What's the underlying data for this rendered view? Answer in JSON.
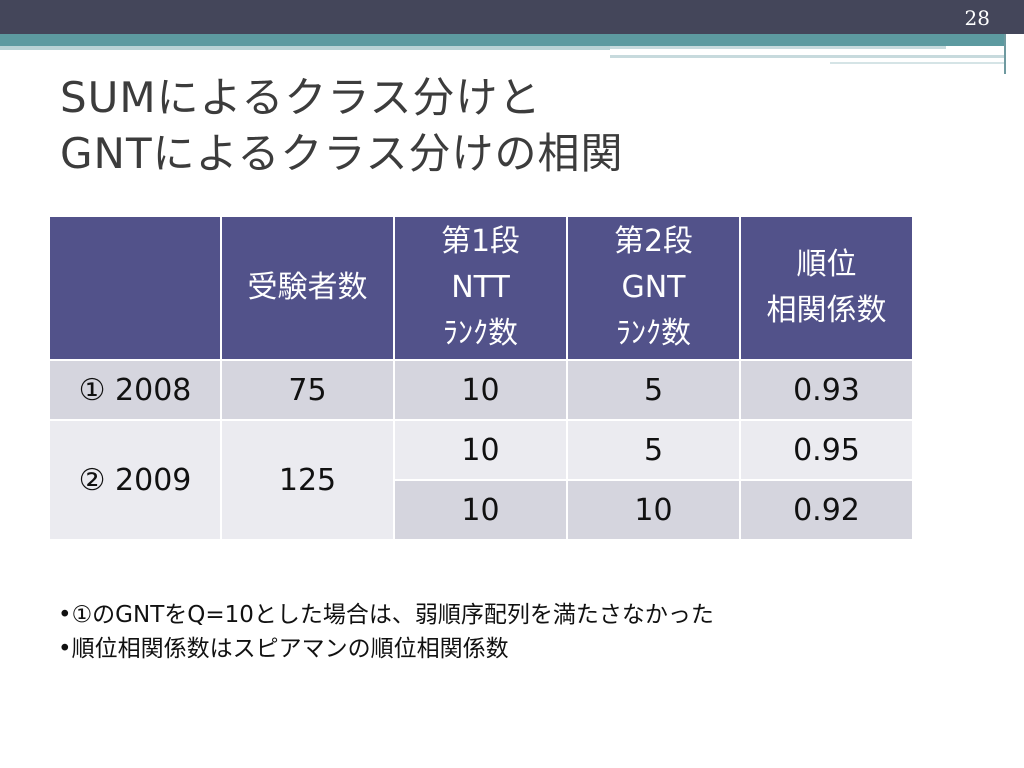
{
  "page_number": "28",
  "title": {
    "line1": "SUMによるクラス分けと",
    "line2": "GNTによるクラス分けの相関"
  },
  "table": {
    "headers": {
      "blank": "",
      "examinees": "受験者数",
      "stage1": [
        "第1段",
        "NTT",
        "ﾗﾝｸ数"
      ],
      "stage2": [
        "第2段",
        "GNT",
        "ﾗﾝｸ数"
      ],
      "correlation": [
        "順位",
        "相関係数"
      ]
    },
    "rows": [
      {
        "label": "① 2008",
        "examinees": "75",
        "ntt": "10",
        "gnt": "5",
        "corr": "0.93"
      },
      {
        "label": "② 2009",
        "examinees": "125",
        "ntt": "10",
        "gnt": "5",
        "corr": "0.95"
      },
      {
        "ntt": "10",
        "gnt": "10",
        "corr": "0.92"
      }
    ]
  },
  "notes": [
    "•①のGNTをQ=10とした場合は、弱順序配列を満たさなかった",
    "•順位相関係数はスピアマンの順位相関係数"
  ]
}
